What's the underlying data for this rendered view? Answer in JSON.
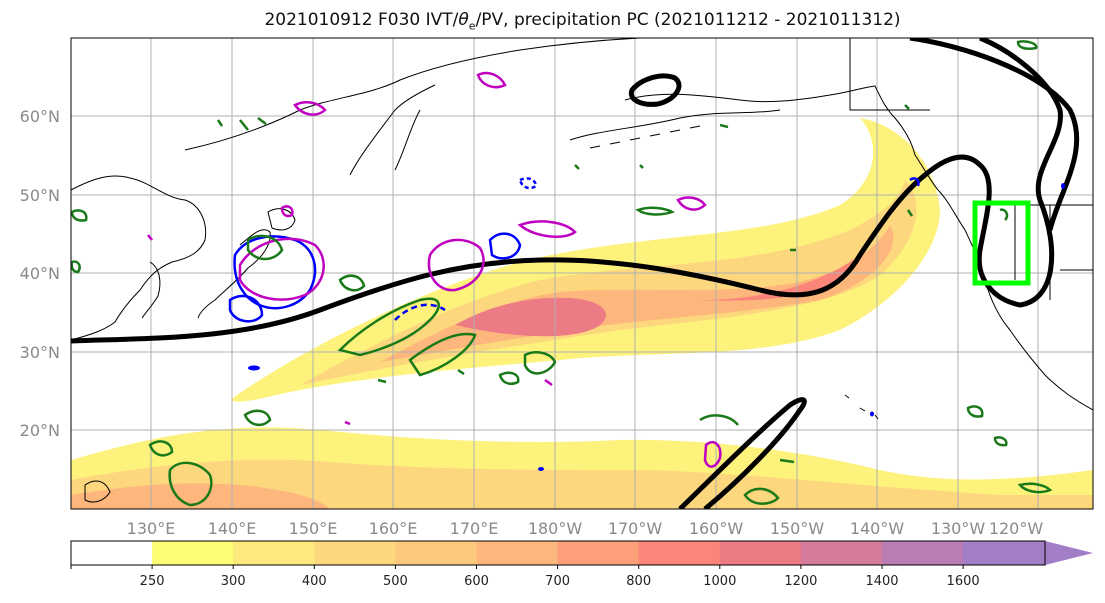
{
  "title": {
    "prefix": "2021010912 F030 IVT/",
    "theta": "θ",
    "theta_sub": "e",
    "suffix": "/PV, precipitation PC (2021011212 - 2021011312)"
  },
  "lat_labels": [
    "60°N",
    "50°N",
    "40°N",
    "30°N",
    "20°N"
  ],
  "lon_labels": [
    "130°E",
    "140°E",
    "150°E",
    "160°E",
    "170°E",
    "180°W",
    "170°W",
    "160°W",
    "150°W",
    "140°W",
    "130°W",
    "120°W"
  ],
  "colorbar": {
    "levels": [
      "250",
      "300",
      "400",
      "500",
      "600",
      "700",
      "800",
      "1000",
      "1200",
      "1400",
      "1600"
    ],
    "colors": [
      "#ffffff",
      "#fdfd74",
      "#fde97c",
      "#fdd77e",
      "#fdc97e",
      "#fdb67c",
      "#fda07a",
      "#fb8579",
      "#ec7b86",
      "#d57b9c",
      "#b97db4",
      "#a27ec7"
    ]
  },
  "colors": {
    "contour_theta_e": "#000000",
    "pv_blue": "#0000ff",
    "pv_magenta": "#c000c0",
    "precip_green": "#1a7a1a",
    "box": "#00ff00"
  }
}
